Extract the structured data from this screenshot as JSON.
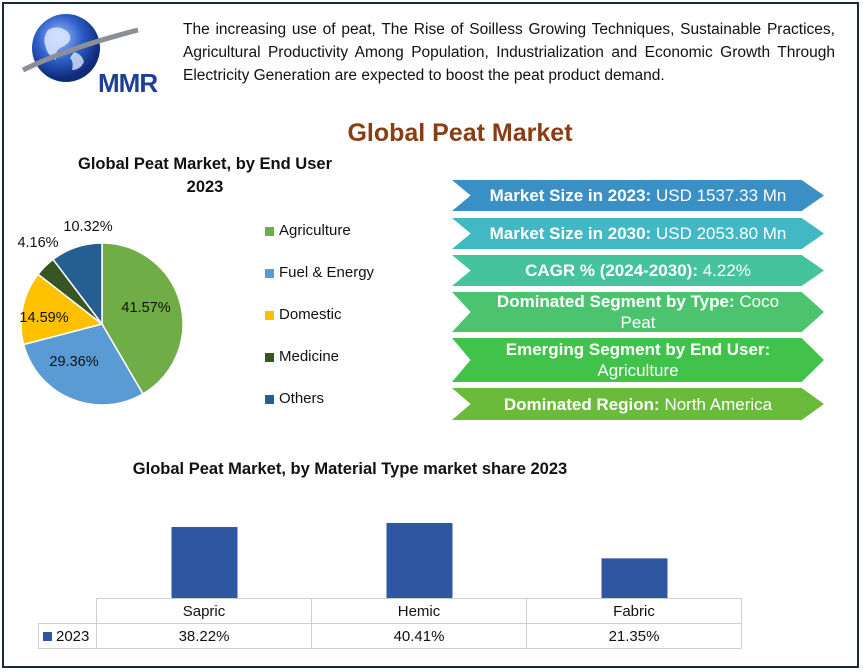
{
  "logo": {
    "text": "MMR",
    "icon": "globe-icon"
  },
  "intro": "The increasing use of peat, The Rise of Soilless Growing Techniques, Sustainable Practices, Agricultural Productivity Among Population, Industrialization and Economic Growth Through Electricity Generation are expected to boost the peat product demand.",
  "main_title": "Global Peat Market",
  "highlights": [
    {
      "label": "Market Size in 2023:",
      "value": "USD 1537.33 Mn",
      "color": "#3a8fc5"
    },
    {
      "label": "Market Size in 2030:",
      "value": "USD 2053.80 Mn",
      "color": "#41b8c4"
    },
    {
      "label": "CAGR % (2024-2030):",
      "value": "4.22%",
      "color": "#45c39a"
    },
    {
      "label": "Dominated Segment by Type:",
      "value": "Coco Peat",
      "color": "#4cc46f"
    },
    {
      "label": "Emerging Segment by End User:",
      "value": "Agriculture",
      "color": "#41c24a"
    },
    {
      "label": "Dominated Region:",
      "value": "North America",
      "color": "#6abb3c"
    }
  ],
  "chart_data": [
    {
      "type": "pie",
      "title_line1": "Global Peat Market, by End User",
      "title_line2": "2023",
      "categories": [
        "Agriculture",
        "Fuel & Energy",
        "Domestic",
        "Medicine",
        "Others"
      ],
      "values": [
        41.57,
        29.36,
        14.59,
        4.16,
        10.32
      ],
      "labels": [
        "41.57%",
        "29.36%",
        "14.59%",
        "4.16%",
        "10.32%"
      ],
      "colors": [
        "#70ad47",
        "#5b9bd5",
        "#ffc000",
        "#375623",
        "#255e91"
      ],
      "legend_position": "right"
    },
    {
      "type": "bar",
      "title": "Global Peat Market, by Material Type market share  2023",
      "categories": [
        "Sapric",
        "Hemic",
        "Fabric"
      ],
      "series": [
        {
          "name": "2023",
          "values": [
            38.22,
            40.41,
            21.35
          ],
          "labels": [
            "38.22%",
            "40.41%",
            "21.35%"
          ],
          "color": "#2f56a0"
        }
      ],
      "ylim": [
        0,
        42
      ],
      "data_table": true
    }
  ]
}
